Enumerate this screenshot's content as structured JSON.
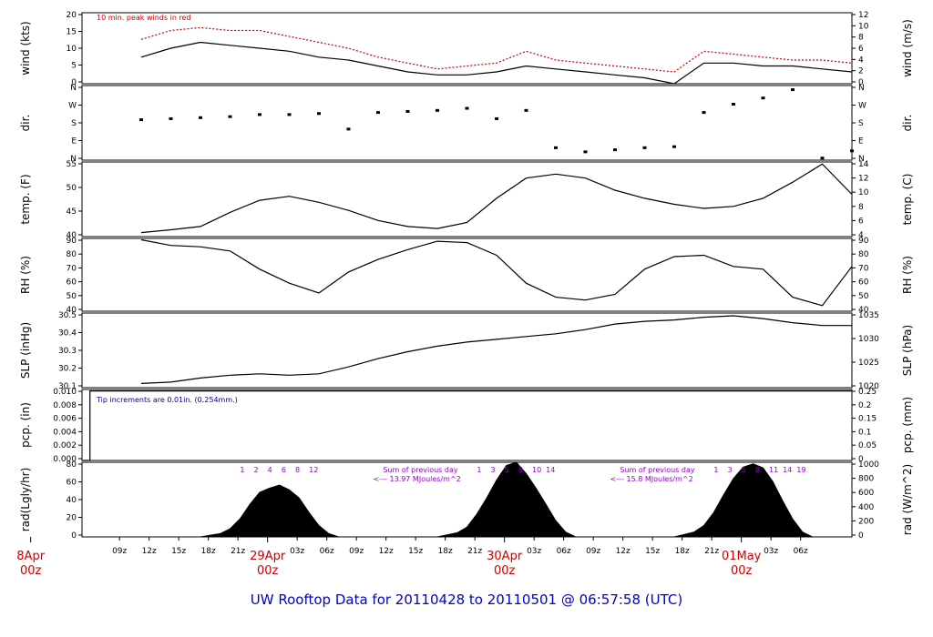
{
  "title": "UW Rooftop Data for 20110428  to  20110501 @ 06:57:58  (UTC)",
  "colors": {
    "title": "#0000cc",
    "dates": "#cc0000",
    "peak": "#cc0000",
    "annot": "#9900cc",
    "pcp_note": "#000099",
    "series": "#000000"
  },
  "x_axis": {
    "hour_ticks": [
      "09z",
      "12z",
      "15z",
      "18z",
      "21z",
      "03z",
      "06z",
      "09z",
      "12z",
      "15z",
      "18z",
      "21z",
      "03z",
      "06z",
      "09z",
      "12z",
      "15z",
      "18z",
      "21z",
      "03z",
      "06z"
    ],
    "day_labels": [
      {
        "day": "8Apr",
        "hour": "00z"
      },
      {
        "day": "29Apr",
        "hour": "00z"
      },
      {
        "day": "30Apr",
        "hour": "00z"
      },
      {
        "day": "01May",
        "hour": "00z"
      }
    ]
  },
  "chart_data": [
    {
      "id": "wind",
      "type": "line",
      "ylabel": "wind (kts)",
      "ylabel_right": "wind (m/s)",
      "yticks": [
        "0",
        "5",
        "10",
        "15",
        "20"
      ],
      "yticks_right": [
        "0",
        "2",
        "4",
        "6",
        "8",
        "10",
        "12"
      ],
      "ylim": [
        0,
        24
      ],
      "annotation": "10 min. peak winds in red",
      "series": [
        {
          "kind": "wind",
          "x": [
            6,
            9,
            12,
            15,
            18,
            21,
            24,
            27,
            30,
            33,
            36,
            39,
            42,
            45,
            48,
            51,
            54,
            57,
            60,
            63,
            66,
            69,
            72,
            75,
            78
          ],
          "y": [
            9,
            12,
            14,
            13,
            12,
            11,
            9,
            8,
            6,
            4,
            3,
            3,
            4,
            6,
            5,
            4,
            3,
            2,
            0,
            7,
            7,
            6,
            6,
            5,
            4
          ]
        },
        {
          "kind": "peak",
          "x": [
            6,
            9,
            12,
            15,
            18,
            21,
            24,
            27,
            30,
            33,
            36,
            39,
            42,
            45,
            48,
            51,
            54,
            57,
            60,
            63,
            66,
            69,
            72,
            75,
            78
          ],
          "y": [
            15,
            18,
            19,
            18,
            18,
            16,
            14,
            12,
            9,
            7,
            5,
            6,
            7,
            11,
            8,
            7,
            6,
            5,
            4,
            11,
            10,
            9,
            8,
            8,
            7
          ]
        }
      ]
    },
    {
      "id": "dir",
      "type": "scatter",
      "ylabel": "dir.",
      "ylabel_right": "dir.",
      "yticks": [
        "N",
        "E",
        "S",
        "W",
        "N"
      ],
      "yticks_right": [
        "N",
        "E",
        "S",
        "W",
        "N"
      ],
      "ylim": [
        0,
        360
      ],
      "series": [
        {
          "x": [
            6,
            9,
            12,
            15,
            18,
            21,
            24,
            27,
            30,
            33,
            36,
            39,
            42,
            45,
            48,
            51,
            54,
            57,
            60,
            63,
            66,
            69,
            72,
            75,
            78
          ],
          "y": [
            195,
            200,
            205,
            210,
            220,
            220,
            225,
            150,
            230,
            235,
            240,
            250,
            200,
            240,
            60,
            40,
            50,
            60,
            65,
            230,
            270,
            300,
            340,
            10,
            45
          ]
        }
      ]
    },
    {
      "id": "temp",
      "type": "line",
      "ylabel": "temp. (F)",
      "ylabel_right": "temp. (C)",
      "yticks": [
        "40",
        "45",
        "50",
        "55"
      ],
      "yticks_right": [
        "4",
        "6",
        "8",
        "10",
        "12",
        "14"
      ],
      "ylim": [
        39.5,
        58
      ],
      "series": [
        {
          "x": [
            6,
            9,
            12,
            15,
            18,
            21,
            24,
            27,
            30,
            33,
            36,
            39,
            42,
            45,
            48,
            51,
            54,
            57,
            60,
            63,
            66,
            69,
            72,
            75,
            78
          ],
          "y": [
            40.5,
            41.2,
            42,
            45.5,
            48.5,
            49.5,
            48,
            46,
            43.5,
            42,
            41.5,
            43,
            49,
            54,
            55,
            54,
            51,
            49,
            47.5,
            46.5,
            47,
            49,
            53,
            57.5,
            50
          ]
        }
      ]
    },
    {
      "id": "rh",
      "type": "line",
      "ylabel": "RH (%)",
      "ylabel_right": "RH (%)",
      "yticks": [
        "40",
        "50",
        "60",
        "70",
        "80",
        "90"
      ],
      "yticks_right": [
        "40",
        "50",
        "60",
        "70",
        "80",
        "90"
      ],
      "ylim": [
        40,
        92
      ],
      "series": [
        {
          "x": [
            6,
            9,
            12,
            15,
            18,
            21,
            24,
            27,
            30,
            33,
            36,
            39,
            42,
            45,
            48,
            51,
            54,
            57,
            60,
            63,
            66,
            69,
            72,
            75,
            78
          ],
          "y": [
            91,
            87,
            86,
            83,
            70,
            60,
            53,
            68,
            77,
            84,
            90,
            89,
            80,
            60,
            50,
            48,
            52,
            70,
            79,
            80,
            72,
            70,
            50,
            44,
            72
          ]
        }
      ]
    },
    {
      "id": "slp",
      "type": "line",
      "ylabel": "SLP (inHg)",
      "ylabel_right": "SLP (hPa)",
      "yticks": [
        "30.1",
        "30.2",
        "30.3",
        "30.4",
        "30.5"
      ],
      "yticks_right": [
        "1020",
        "1025",
        "1030",
        "1035"
      ],
      "ylim": [
        30.05,
        30.59
      ],
      "series": [
        {
          "x": [
            6,
            9,
            12,
            15,
            18,
            21,
            24,
            27,
            30,
            33,
            36,
            39,
            42,
            45,
            48,
            51,
            54,
            57,
            60,
            63,
            66,
            69,
            72,
            75,
            78
          ],
          "y": [
            30.08,
            30.09,
            30.12,
            30.14,
            30.15,
            30.14,
            30.15,
            30.2,
            30.26,
            30.31,
            30.35,
            30.38,
            30.4,
            30.42,
            30.44,
            30.47,
            30.51,
            30.53,
            30.54,
            30.56,
            30.57,
            30.55,
            30.52,
            30.5,
            30.5
          ]
        }
      ]
    },
    {
      "id": "pcp",
      "type": "line",
      "ylabel": "pcp. (in)",
      "ylabel_right": "pcp. (mm)",
      "yticks": [
        "0.000",
        "0.002",
        "0.004",
        "0.006",
        "0.008",
        "0.010"
      ],
      "yticks_right": [
        "0",
        "0.05",
        "0.1",
        "0.15",
        "0.2",
        "0.25"
      ],
      "ylim": [
        0,
        0.01
      ],
      "annotation": "Tip increments are 0.01in. (0.254mm.)",
      "series": [
        {
          "x": [
            0,
            0.8,
            0.8,
            78
          ],
          "y": [
            0,
            0,
            0.0098,
            0.0098
          ]
        }
      ]
    },
    {
      "id": "rad",
      "type": "area",
      "ylabel": "rad(Lgly/hr)",
      "ylabel_right": "rad (W/m^2)",
      "yticks": [
        "0",
        "20",
        "40",
        "60",
        "80"
      ],
      "yticks_right": [
        "0",
        "200",
        "400",
        "600",
        "800",
        "1000"
      ],
      "ylim": [
        0,
        92
      ],
      "uv_labels_1": [
        "1",
        "2",
        "4",
        "6",
        "8",
        "12"
      ],
      "uv_labels_2": [
        "1",
        "3",
        "5",
        "8",
        "10",
        "14"
      ],
      "uv_labels_3": [
        "1",
        "3",
        "5",
        "8",
        "11",
        "14",
        "19"
      ],
      "sum_1": {
        "line1": "Sum of previous day",
        "line2": "<--- 13.97 MJoules/m^2"
      },
      "sum_2": {
        "line1": "Sum of previous day",
        "line2": "<--- 15.8 MJoules/m^2"
      },
      "series": [
        {
          "x": [
            12,
            14,
            15,
            16,
            17,
            18,
            19,
            20,
            21,
            22,
            23,
            24,
            25,
            26
          ],
          "y": [
            0,
            4,
            10,
            22,
            40,
            55,
            60,
            64,
            58,
            48,
            30,
            14,
            4,
            0
          ]
        },
        {
          "x": [
            36,
            38,
            39,
            40,
            41,
            42,
            43,
            44,
            45,
            46,
            47,
            48,
            49,
            50
          ],
          "y": [
            0,
            5,
            12,
            28,
            48,
            70,
            88,
            92,
            78,
            60,
            40,
            20,
            6,
            0
          ]
        },
        {
          "x": [
            60,
            62,
            63,
            64,
            65,
            66,
            67,
            68,
            69,
            70,
            71,
            72,
            73,
            74
          ],
          "y": [
            0,
            6,
            14,
            30,
            52,
            72,
            86,
            90,
            85,
            68,
            44,
            22,
            6,
            0
          ]
        }
      ]
    }
  ]
}
